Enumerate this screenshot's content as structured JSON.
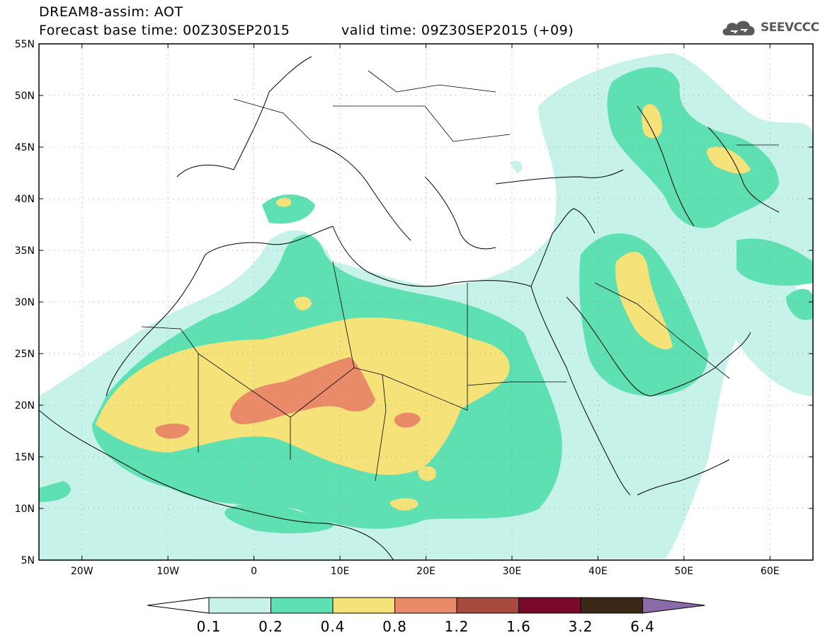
{
  "header": {
    "line1": "DREAM8-assim: AOT",
    "line2": "Forecast base time: 00Z30SEP2015",
    "line2b": "valid time: 09Z30SEP2015 (+09)",
    "logo": "SEEVCCC",
    "logo_icon": "cloud-icon"
  },
  "map": {
    "lat_range": [
      5,
      55
    ],
    "lon_range": [
      -25,
      65
    ],
    "lat_ticks": [
      {
        "value": 55,
        "label": "55N"
      },
      {
        "value": 50,
        "label": "50N"
      },
      {
        "value": 45,
        "label": "45N"
      },
      {
        "value": 40,
        "label": "40N"
      },
      {
        "value": 35,
        "label": "35N"
      },
      {
        "value": 30,
        "label": "30N"
      },
      {
        "value": 25,
        "label": "25N"
      },
      {
        "value": 20,
        "label": "20N"
      },
      {
        "value": 15,
        "label": "15N"
      },
      {
        "value": 10,
        "label": "10N"
      },
      {
        "value": 5,
        "label": "5N"
      }
    ],
    "lon_ticks": [
      {
        "value": -20,
        "label": "20W"
      },
      {
        "value": -10,
        "label": "10W"
      },
      {
        "value": 0,
        "label": "0"
      },
      {
        "value": 10,
        "label": "10E"
      },
      {
        "value": 20,
        "label": "20E"
      },
      {
        "value": 30,
        "label": "30E"
      },
      {
        "value": 40,
        "label": "40E"
      },
      {
        "value": 50,
        "label": "50E"
      },
      {
        "value": 60,
        "label": "60E"
      }
    ]
  },
  "legend": {
    "labels": [
      "0.1",
      "0.2",
      "0.4",
      "0.8",
      "1.2",
      "1.6",
      "3.2",
      "6.4"
    ],
    "colors": [
      "#ffffff",
      "#c7f2ea",
      "#5ee0b2",
      "#f5e37a",
      "#e98a68",
      "#a84a3e",
      "#7a0a2a",
      "#3b2817",
      "#8b6aa8"
    ]
  },
  "colors": {
    "level1": "#c7f2ea",
    "level2": "#5ee0b2",
    "level3": "#f5e37a",
    "level4": "#e98a68"
  }
}
